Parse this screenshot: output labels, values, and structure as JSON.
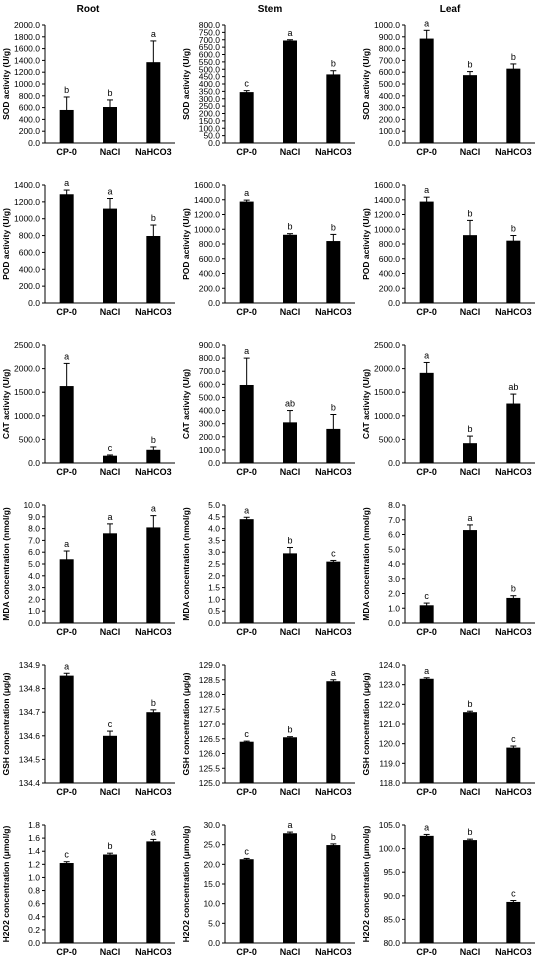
{
  "columns": [
    "Root",
    "Stem",
    "Leaf"
  ],
  "chart_data": [
    {
      "type": "bar",
      "row": 0,
      "col": 0,
      "ylabel": "SOD activity (U/g)",
      "ylim": [
        0,
        2000
      ],
      "yticks": [
        0,
        200,
        400,
        600,
        800,
        1000,
        1200,
        1400,
        1600,
        1800,
        2000
      ],
      "categories": [
        "CP-0",
        "NaCl",
        "NaHCO3"
      ],
      "values": [
        560,
        610,
        1370
      ],
      "errors": [
        220,
        120,
        360
      ],
      "letters": [
        "b",
        "b",
        "a"
      ]
    },
    {
      "type": "bar",
      "row": 0,
      "col": 1,
      "ylabel": "SOD activity (U/g)",
      "ylim": [
        0,
        800
      ],
      "yticks": [
        0,
        50,
        100,
        150,
        200,
        250,
        300,
        350,
        400,
        450,
        500,
        550,
        600,
        650,
        700,
        750,
        800
      ],
      "categories": [
        "CP-0",
        "NaCl",
        "NaHCO3"
      ],
      "values": [
        345,
        695,
        465
      ],
      "errors": [
        10,
        5,
        25
      ],
      "letters": [
        "c",
        "a",
        "b"
      ]
    },
    {
      "type": "bar",
      "row": 0,
      "col": 2,
      "ylabel": "SOD activity (U/g)",
      "ylim": [
        0,
        1000
      ],
      "yticks": [
        0,
        100,
        200,
        300,
        400,
        500,
        600,
        700,
        800,
        900,
        1000
      ],
      "categories": [
        "CP-0",
        "NaCl",
        "NaHCO3"
      ],
      "values": [
        885,
        575,
        630
      ],
      "errors": [
        70,
        30,
        40
      ],
      "letters": [
        "a",
        "b",
        "b"
      ]
    },
    {
      "type": "bar",
      "row": 1,
      "col": 0,
      "ylabel": "POD activity (U/g)",
      "ylim": [
        0,
        1400
      ],
      "yticks": [
        0,
        200,
        400,
        600,
        800,
        1000,
        1200,
        1400
      ],
      "categories": [
        "CP-0",
        "NaCl",
        "NaHCO3"
      ],
      "values": [
        1290,
        1120,
        795
      ],
      "errors": [
        50,
        120,
        130
      ],
      "letters": [
        "a",
        "a",
        "b"
      ]
    },
    {
      "type": "bar",
      "row": 1,
      "col": 1,
      "ylabel": "POD activity (U/g)",
      "ylim": [
        0,
        1600
      ],
      "yticks": [
        0,
        200,
        400,
        600,
        800,
        1000,
        1200,
        1400,
        1600
      ],
      "categories": [
        "CP-0",
        "NaCl",
        "NaHCO3"
      ],
      "values": [
        1375,
        925,
        840
      ],
      "errors": [
        20,
        15,
        90
      ],
      "letters": [
        "a",
        "b",
        "b"
      ]
    },
    {
      "type": "bar",
      "row": 1,
      "col": 2,
      "ylabel": "POD activity (U/g)",
      "ylim": [
        0,
        1600
      ],
      "yticks": [
        0,
        200,
        400,
        600,
        800,
        1000,
        1200,
        1400,
        1600
      ],
      "categories": [
        "CP-0",
        "NaCl",
        "NaHCO3"
      ],
      "values": [
        1375,
        920,
        845
      ],
      "errors": [
        60,
        200,
        70
      ],
      "letters": [
        "a",
        "b",
        "b"
      ]
    },
    {
      "type": "bar",
      "row": 2,
      "col": 0,
      "ylabel": "CAT activity (U/g)",
      "ylim": [
        0,
        2500
      ],
      "yticks": [
        0,
        500,
        1000,
        1500,
        2000,
        2500
      ],
      "categories": [
        "CP-0",
        "NaCl",
        "NaHCO3"
      ],
      "values": [
        1630,
        155,
        280
      ],
      "errors": [
        480,
        15,
        60
      ],
      "letters": [
        "a",
        "c",
        "b"
      ]
    },
    {
      "type": "bar",
      "row": 2,
      "col": 1,
      "ylabel": "CAT activity (U/g)",
      "ylim": [
        0,
        900
      ],
      "yticks": [
        0,
        100,
        200,
        300,
        400,
        500,
        600,
        700,
        800,
        900
      ],
      "categories": [
        "CP-0",
        "NaCl",
        "NaHCO3"
      ],
      "values": [
        595,
        310,
        260
      ],
      "errors": [
        205,
        90,
        110
      ],
      "letters": [
        "a",
        "ab",
        "b"
      ]
    },
    {
      "type": "bar",
      "row": 2,
      "col": 2,
      "ylabel": "CAT activity (U/g)",
      "ylim": [
        0,
        2500
      ],
      "yticks": [
        0,
        500,
        1000,
        1500,
        2000,
        2500
      ],
      "categories": [
        "CP-0",
        "NaCl",
        "NaHCO3"
      ],
      "values": [
        1910,
        420,
        1260
      ],
      "errors": [
        220,
        150,
        200
      ],
      "letters": [
        "a",
        "b",
        "ab"
      ]
    },
    {
      "type": "bar",
      "row": 3,
      "col": 0,
      "ylabel": "MDA concentration (nmol/g)",
      "ylim": [
        0,
        10
      ],
      "yticks": [
        0,
        1,
        2,
        3,
        4,
        5,
        6,
        7,
        8,
        9,
        10
      ],
      "categories": [
        "CP-0",
        "NaCl",
        "NaHCO3"
      ],
      "values": [
        5.4,
        7.6,
        8.1
      ],
      "errors": [
        0.7,
        0.8,
        1.0
      ],
      "letters": [
        "a",
        "a",
        "a"
      ]
    },
    {
      "type": "bar",
      "row": 3,
      "col": 1,
      "ylabel": "MDA concentration (nmol/g)",
      "ylim": [
        0,
        5
      ],
      "yticks": [
        0,
        0.5,
        1,
        1.5,
        2,
        2.5,
        3,
        3.5,
        4,
        4.5,
        5
      ],
      "categories": [
        "CP-0",
        "NaCl",
        "NaHCO3"
      ],
      "values": [
        4.4,
        2.95,
        2.6
      ],
      "errors": [
        0.08,
        0.25,
        0.05
      ],
      "letters": [
        "a",
        "b",
        "c"
      ]
    },
    {
      "type": "bar",
      "row": 3,
      "col": 2,
      "ylabel": "MDA concentration (nmol/g)",
      "ylim": [
        0,
        8
      ],
      "yticks": [
        0,
        1,
        2,
        3,
        4,
        5,
        6,
        7,
        8
      ],
      "categories": [
        "CP-0",
        "NaCl",
        "NaHCO3"
      ],
      "values": [
        1.2,
        6.3,
        1.7
      ],
      "errors": [
        0.15,
        0.35,
        0.15
      ],
      "letters": [
        "c",
        "a",
        "b"
      ]
    },
    {
      "type": "bar",
      "row": 4,
      "col": 0,
      "ylabel": "GSH concentration (μg/g)",
      "ylim": [
        134.4,
        134.9
      ],
      "yticks": [
        134.4,
        134.5,
        134.6,
        134.7,
        134.8,
        134.9
      ],
      "categories": [
        "CP-0",
        "NaCl",
        "NaHCO3"
      ],
      "values": [
        134.855,
        134.6,
        134.7
      ],
      "errors": [
        0.01,
        0.02,
        0.01
      ],
      "letters": [
        "a",
        "c",
        "b"
      ]
    },
    {
      "type": "bar",
      "row": 4,
      "col": 1,
      "ylabel": "GSH concentration (μg/g)",
      "ylim": [
        125,
        129
      ],
      "yticks": [
        125,
        125.5,
        126,
        126.5,
        127,
        127.5,
        128,
        128.5,
        129
      ],
      "categories": [
        "CP-0",
        "NaCl",
        "NaHCO3"
      ],
      "values": [
        126.4,
        126.55,
        128.45
      ],
      "errors": [
        0.02,
        0.02,
        0.05
      ],
      "letters": [
        "c",
        "b",
        "a"
      ]
    },
    {
      "type": "bar",
      "row": 4,
      "col": 2,
      "ylabel": "GSH concentration (μg/g)",
      "ylim": [
        118,
        124
      ],
      "yticks": [
        118,
        119,
        120,
        121,
        122,
        123,
        124
      ],
      "categories": [
        "CP-0",
        "NaCl",
        "NaHCO3"
      ],
      "values": [
        123.3,
        121.6,
        119.8
      ],
      "errors": [
        0.05,
        0.05,
        0.08
      ],
      "letters": [
        "a",
        "b",
        "c"
      ]
    },
    {
      "type": "bar",
      "row": 5,
      "col": 0,
      "ylabel": "H2O2 concentration (μmol/g)",
      "ylim": [
        0,
        1.8
      ],
      "yticks": [
        0,
        0.2,
        0.4,
        0.6,
        0.8,
        1.0,
        1.2,
        1.4,
        1.6,
        1.8
      ],
      "categories": [
        "CP-0",
        "NaCl",
        "NaHCO3"
      ],
      "values": [
        1.22,
        1.35,
        1.55
      ],
      "errors": [
        0.02,
        0.02,
        0.03
      ],
      "letters": [
        "c",
        "b",
        "a"
      ]
    },
    {
      "type": "bar",
      "row": 5,
      "col": 1,
      "ylabel": "H2O2 concentration (μmol/g)",
      "ylim": [
        0,
        30
      ],
      "yticks": [
        0,
        5,
        10,
        15,
        20,
        25,
        30
      ],
      "categories": [
        "CP-0",
        "NaCl",
        "NaHCO3"
      ],
      "values": [
        21.3,
        27.9,
        24.9
      ],
      "errors": [
        0.2,
        0.3,
        0.3
      ],
      "letters": [
        "c",
        "a",
        "b"
      ]
    },
    {
      "type": "bar",
      "row": 5,
      "col": 2,
      "ylabel": "H2O2 concentration (μmol/g)",
      "ylim": [
        80,
        105
      ],
      "yticks": [
        80,
        85,
        90,
        95,
        100,
        105
      ],
      "categories": [
        "CP-0",
        "NaCl",
        "NaHCO3"
      ],
      "values": [
        102.7,
        101.8,
        88.7
      ],
      "errors": [
        0.3,
        0.2,
        0.3
      ],
      "letters": [
        "a",
        "b",
        "c"
      ]
    }
  ]
}
